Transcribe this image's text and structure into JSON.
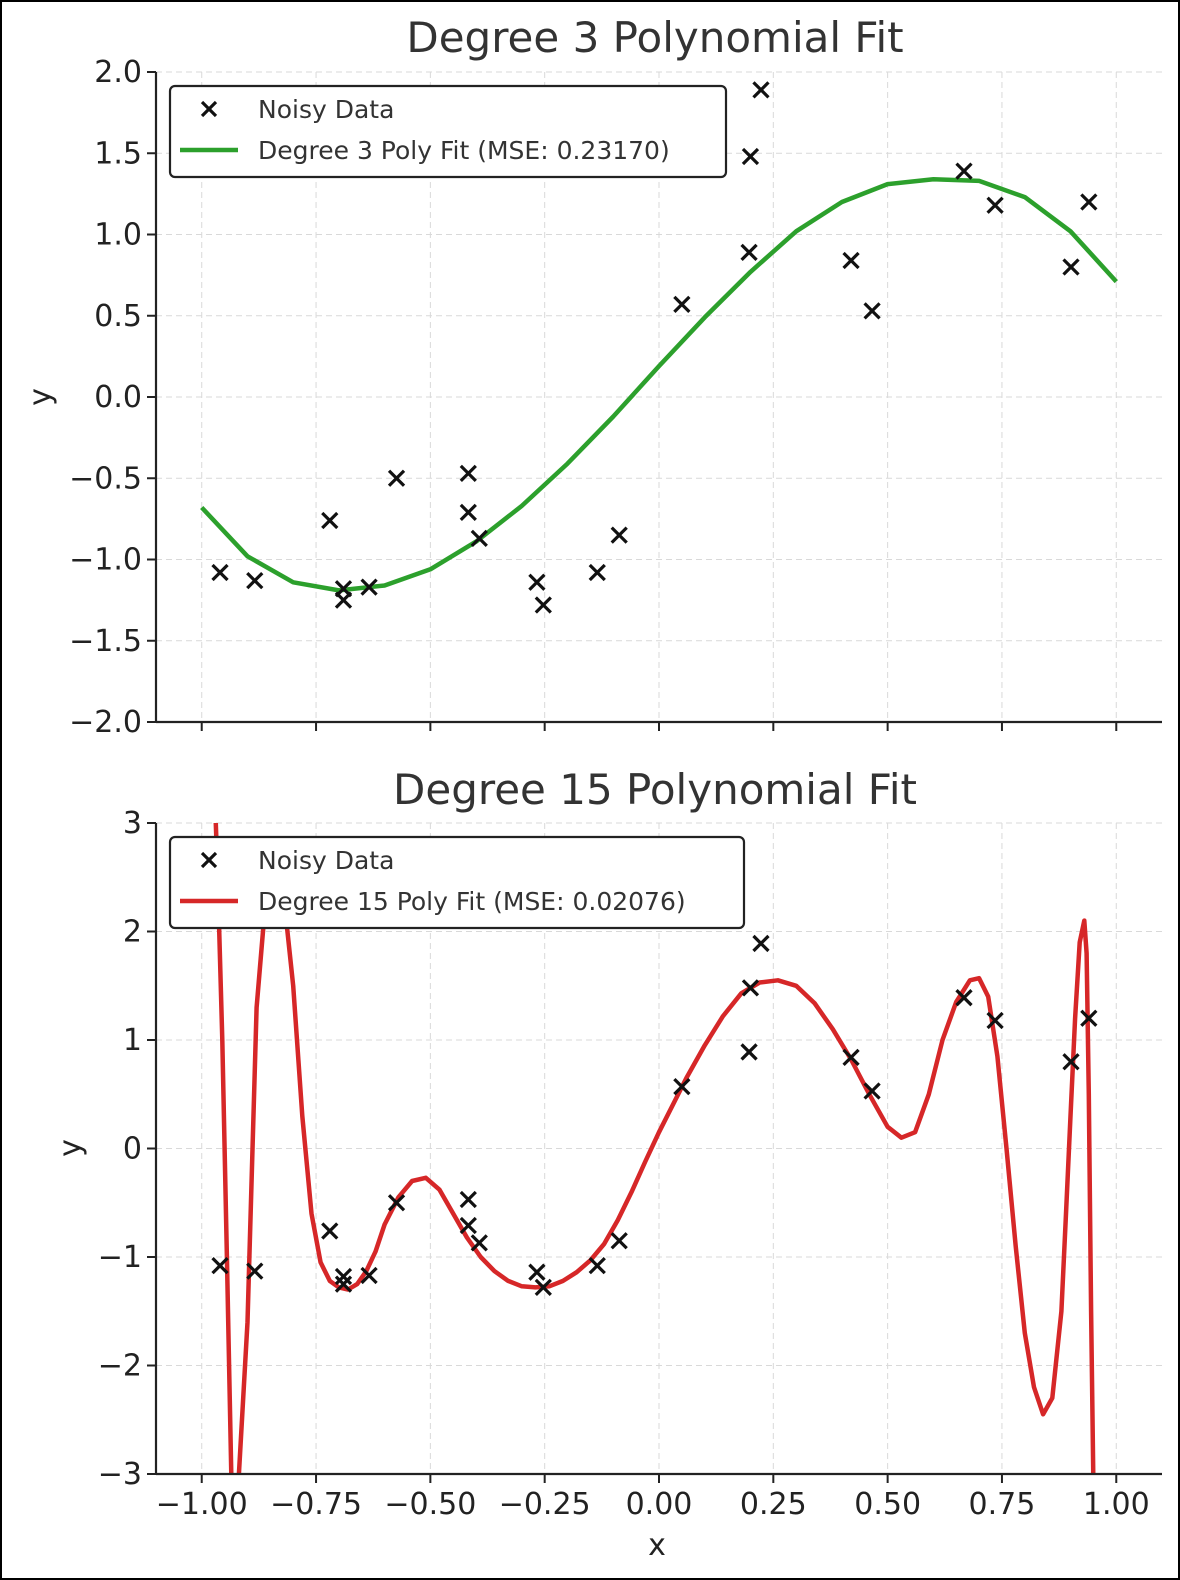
{
  "chart_data": [
    {
      "type": "line",
      "title": "Degree 3 Polynomial Fit",
      "xlabel": "",
      "ylabel": "y",
      "xlim": [
        -1.1,
        1.1
      ],
      "ylim": [
        -2.0,
        2.0
      ],
      "xticks": [
        -1.0,
        -0.75,
        -0.5,
        -0.25,
        0.0,
        0.25,
        0.5,
        0.75,
        1.0
      ],
      "yticks": [
        -2.0,
        -1.5,
        -1.0,
        -0.5,
        0.0,
        0.5,
        1.0,
        1.5,
        2.0
      ],
      "ytick_labels": [
        "−2.0",
        "−1.5",
        "−1.0",
        "−0.5",
        "0.0",
        "0.5",
        "1.0",
        "1.5",
        "2.0"
      ],
      "grid": true,
      "legend_position": "top-left",
      "series": [
        {
          "name": "Noisy Data",
          "kind": "scatter",
          "marker": "x",
          "color": "#111111",
          "points": [
            [
              -0.96,
              -1.08
            ],
            [
              -0.884,
              -1.13
            ],
            [
              -0.72,
              -0.76
            ],
            [
              -0.69,
              -1.18
            ],
            [
              -0.69,
              -1.25
            ],
            [
              -0.634,
              -1.17
            ],
            [
              -0.574,
              -0.5
            ],
            [
              -0.417,
              -0.47
            ],
            [
              -0.417,
              -0.71
            ],
            [
              -0.393,
              -0.87
            ],
            [
              -0.267,
              -1.14
            ],
            [
              -0.253,
              -1.28
            ],
            [
              -0.135,
              -1.08
            ],
            [
              -0.087,
              -0.85
            ],
            [
              0.05,
              0.57
            ],
            [
              0.197,
              0.89
            ],
            [
              0.2,
              1.48
            ],
            [
              0.223,
              1.89
            ],
            [
              0.42,
              0.84
            ],
            [
              0.466,
              0.53
            ],
            [
              0.667,
              1.39
            ],
            [
              0.735,
              1.18
            ],
            [
              0.901,
              0.8
            ],
            [
              0.94,
              1.2
            ]
          ]
        },
        {
          "name": "Degree 3 Poly Fit (MSE: 0.23170)",
          "kind": "line",
          "color": "#2ca02c",
          "x": [
            -1.0,
            -0.9,
            -0.8,
            -0.7,
            -0.6,
            -0.5,
            -0.4,
            -0.3,
            -0.2,
            -0.1,
            0.0,
            0.1,
            0.2,
            0.3,
            0.4,
            0.5,
            0.6,
            0.7,
            0.8,
            0.9,
            1.0
          ],
          "values": [
            -0.68,
            -0.98,
            -1.14,
            -1.19,
            -1.16,
            -1.06,
            -0.89,
            -0.67,
            -0.41,
            -0.12,
            0.19,
            0.49,
            0.77,
            1.02,
            1.2,
            1.31,
            1.34,
            1.33,
            1.23,
            1.02,
            0.71
          ]
        }
      ]
    },
    {
      "type": "line",
      "title": "Degree 15 Polynomial Fit",
      "xlabel": "x",
      "ylabel": "y",
      "xlim": [
        -1.1,
        1.1
      ],
      "ylim": [
        -3,
        3
      ],
      "xticks": [
        -1.0,
        -0.75,
        -0.5,
        -0.25,
        0.0,
        0.25,
        0.5,
        0.75,
        1.0
      ],
      "xtick_labels": [
        "−1.00",
        "−0.75",
        "−0.50",
        "−0.25",
        "0.00",
        "0.25",
        "0.50",
        "0.75",
        "1.00"
      ],
      "yticks": [
        -3,
        -2,
        -1,
        0,
        1,
        2,
        3
      ],
      "ytick_labels": [
        "−3",
        "−2",
        "−1",
        "0",
        "1",
        "2",
        "3"
      ],
      "grid": true,
      "legend_position": "top-left",
      "series": [
        {
          "name": "Noisy Data",
          "kind": "scatter",
          "marker": "x",
          "color": "#111111",
          "points": [
            [
              -0.96,
              -1.08
            ],
            [
              -0.884,
              -1.13
            ],
            [
              -0.72,
              -0.76
            ],
            [
              -0.69,
              -1.18
            ],
            [
              -0.69,
              -1.25
            ],
            [
              -0.634,
              -1.17
            ],
            [
              -0.574,
              -0.5
            ],
            [
              -0.417,
              -0.47
            ],
            [
              -0.417,
              -0.71
            ],
            [
              -0.393,
              -0.87
            ],
            [
              -0.267,
              -1.14
            ],
            [
              -0.253,
              -1.28
            ],
            [
              -0.135,
              -1.08
            ],
            [
              -0.087,
              -0.85
            ],
            [
              0.05,
              0.57
            ],
            [
              0.197,
              0.89
            ],
            [
              0.2,
              1.48
            ],
            [
              0.223,
              1.89
            ],
            [
              0.42,
              0.84
            ],
            [
              0.466,
              0.53
            ],
            [
              0.667,
              1.39
            ],
            [
              0.735,
              1.18
            ],
            [
              0.901,
              0.8
            ],
            [
              0.94,
              1.2
            ]
          ]
        },
        {
          "name": "Degree 15 Poly Fit (MSE: 0.02076)",
          "kind": "line",
          "color": "#d62728",
          "x": [
            -0.97,
            -0.965,
            -0.955,
            -0.945,
            -0.935,
            -0.92,
            -0.9,
            -0.88,
            -0.86,
            -0.84,
            -0.82,
            -0.8,
            -0.78,
            -0.76,
            -0.74,
            -0.72,
            -0.7,
            -0.68,
            -0.66,
            -0.64,
            -0.62,
            -0.6,
            -0.57,
            -0.54,
            -0.51,
            -0.48,
            -0.45,
            -0.42,
            -0.39,
            -0.36,
            -0.33,
            -0.3,
            -0.27,
            -0.24,
            -0.21,
            -0.18,
            -0.15,
            -0.12,
            -0.09,
            -0.06,
            -0.03,
            0.0,
            0.03,
            0.06,
            0.1,
            0.14,
            0.18,
            0.22,
            0.26,
            0.3,
            0.34,
            0.38,
            0.42,
            0.46,
            0.5,
            0.53,
            0.56,
            0.59,
            0.62,
            0.65,
            0.68,
            0.7,
            0.72,
            0.74,
            0.76,
            0.78,
            0.8,
            0.82,
            0.84,
            0.86,
            0.88,
            0.89,
            0.9,
            0.91,
            0.92,
            0.93,
            0.935,
            0.94,
            0.945,
            0.95
          ],
          "values": [
            3.1,
            2.5,
            1.0,
            -1.0,
            -3.1,
            -3.1,
            -1.6,
            1.3,
            2.3,
            2.6,
            2.3,
            1.5,
            0.3,
            -0.6,
            -1.05,
            -1.22,
            -1.28,
            -1.3,
            -1.25,
            -1.13,
            -0.95,
            -0.7,
            -0.45,
            -0.3,
            -0.27,
            -0.38,
            -0.6,
            -0.82,
            -1.0,
            -1.13,
            -1.22,
            -1.27,
            -1.28,
            -1.27,
            -1.22,
            -1.14,
            -1.03,
            -0.88,
            -0.66,
            -0.4,
            -0.12,
            0.15,
            0.4,
            0.65,
            0.95,
            1.22,
            1.43,
            1.53,
            1.55,
            1.5,
            1.34,
            1.1,
            0.82,
            0.5,
            0.2,
            0.1,
            0.15,
            0.5,
            1.0,
            1.35,
            1.55,
            1.57,
            1.4,
            0.85,
            0.0,
            -0.9,
            -1.7,
            -2.2,
            -2.45,
            -2.3,
            -1.5,
            -0.6,
            0.3,
            1.2,
            1.9,
            2.1,
            1.8,
            0.5,
            -1.5,
            -3.1
          ]
        }
      ]
    }
  ]
}
